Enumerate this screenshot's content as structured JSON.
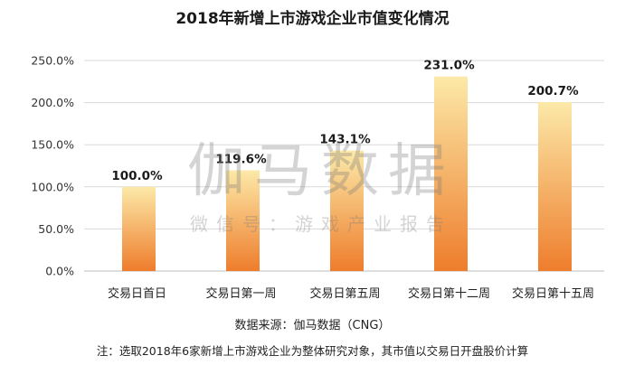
{
  "chart_data": {
    "type": "bar",
    "title": "2018年新增上市游戏企业市值变化情况",
    "categories": [
      "交易日首日",
      "交易日第一周",
      "交易日第五周",
      "交易日第十二周",
      "交易日第十五周"
    ],
    "values": [
      100.0,
      119.6,
      143.1,
      231.0,
      200.7
    ],
    "value_labels": [
      "100.0%",
      "119.6%",
      "143.1%",
      "231.0%",
      "200.7%"
    ],
    "ylim": [
      0,
      250
    ],
    "yticks": [
      0,
      50,
      100,
      150,
      200,
      250
    ],
    "ytick_labels": [
      "0.0%",
      "50.0%",
      "100.0%",
      "150.0%",
      "200.0%",
      "250.0%"
    ],
    "grid": true,
    "bar_color_top": "#fce9a8",
    "bar_color_bottom": "#ee7d2c"
  },
  "source": "数据来源：伽马数据（CNG）",
  "footnote": "注：选取2018年6家新增上市游戏企业为整体研究对象，其市值以交易日开盘股价计算",
  "watermark": {
    "main": "伽马数据",
    "sub": "微信号：游戏产业报告"
  }
}
